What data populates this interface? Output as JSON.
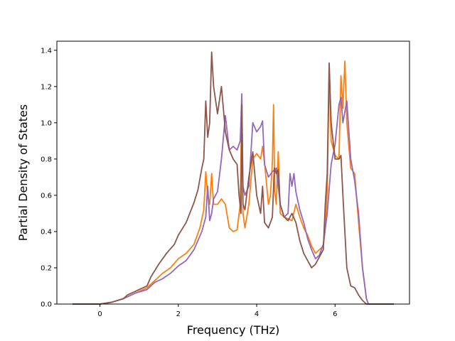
{
  "chart_data": {
    "type": "line",
    "title": "",
    "xlabel": "Frequency (THz)",
    "ylabel": "Partial Density of States",
    "xlim": [
      -1.1,
      7.9
    ],
    "ylim": [
      0.0,
      1.45
    ],
    "xticks": [
      0,
      2,
      4,
      6
    ],
    "xtick_labels": [
      "0",
      "2",
      "4",
      "6"
    ],
    "yticks": [
      0.0,
      0.2,
      0.4,
      0.6,
      0.8,
      1.0,
      1.2,
      1.4
    ],
    "ytick_labels": [
      "0.0",
      "0.2",
      "0.4",
      "0.6",
      "0.8",
      "1.0",
      "1.2",
      "1.4"
    ],
    "grid": false,
    "legend": "none",
    "series": [
      {
        "color": "#ff7f0e",
        "points": [
          [
            -0.7,
            0.0
          ],
          [
            0.0,
            0.0
          ],
          [
            0.3,
            0.01
          ],
          [
            0.6,
            0.03
          ],
          [
            0.9,
            0.06
          ],
          [
            1.2,
            0.09
          ],
          [
            1.4,
            0.13
          ],
          [
            1.6,
            0.17
          ],
          [
            1.8,
            0.2
          ],
          [
            2.0,
            0.25
          ],
          [
            2.2,
            0.28
          ],
          [
            2.4,
            0.33
          ],
          [
            2.55,
            0.42
          ],
          [
            2.65,
            0.52
          ],
          [
            2.7,
            0.73
          ],
          [
            2.75,
            0.6
          ],
          [
            2.8,
            0.55
          ],
          [
            2.85,
            0.72
          ],
          [
            2.9,
            0.55
          ],
          [
            3.0,
            0.55
          ],
          [
            3.1,
            0.58
          ],
          [
            3.2,
            0.55
          ],
          [
            3.3,
            0.42
          ],
          [
            3.4,
            0.4
          ],
          [
            3.5,
            0.41
          ],
          [
            3.58,
            0.55
          ],
          [
            3.62,
            1.13
          ],
          [
            3.65,
            0.5
          ],
          [
            3.7,
            0.42
          ],
          [
            3.8,
            0.55
          ],
          [
            3.9,
            0.8
          ],
          [
            4.0,
            0.83
          ],
          [
            4.1,
            0.8
          ],
          [
            4.15,
            0.87
          ],
          [
            4.2,
            0.78
          ],
          [
            4.3,
            0.55
          ],
          [
            4.35,
            0.6
          ],
          [
            4.4,
            0.78
          ],
          [
            4.43,
            1.1
          ],
          [
            4.46,
            0.62
          ],
          [
            4.5,
            0.55
          ],
          [
            4.55,
            0.84
          ],
          [
            4.6,
            0.5
          ],
          [
            4.7,
            0.48
          ],
          [
            4.8,
            0.47
          ],
          [
            4.9,
            0.46
          ],
          [
            5.0,
            0.55
          ],
          [
            5.1,
            0.48
          ],
          [
            5.2,
            0.42
          ],
          [
            5.3,
            0.38
          ],
          [
            5.4,
            0.32
          ],
          [
            5.5,
            0.28
          ],
          [
            5.6,
            0.3
          ],
          [
            5.7,
            0.32
          ],
          [
            5.75,
            0.42
          ],
          [
            5.8,
            0.62
          ],
          [
            5.85,
            1.28
          ],
          [
            5.9,
            0.9
          ],
          [
            6.0,
            0.82
          ],
          [
            6.1,
            0.8
          ],
          [
            6.15,
            1.26
          ],
          [
            6.2,
            1.08
          ],
          [
            6.25,
            1.34
          ],
          [
            6.3,
            1.0
          ],
          [
            6.4,
            0.75
          ],
          [
            6.5,
            0.72
          ],
          [
            6.6,
            0.45
          ],
          [
            6.7,
            0.2
          ],
          [
            6.8,
            0.03
          ],
          [
            6.85,
            0.0
          ],
          [
            7.5,
            0.0
          ]
        ]
      },
      {
        "color": "#9467bd",
        "points": [
          [
            -0.7,
            0.0
          ],
          [
            0.0,
            0.0
          ],
          [
            0.3,
            0.01
          ],
          [
            0.6,
            0.03
          ],
          [
            0.9,
            0.06
          ],
          [
            1.2,
            0.08
          ],
          [
            1.4,
            0.12
          ],
          [
            1.6,
            0.14
          ],
          [
            1.8,
            0.17
          ],
          [
            2.0,
            0.21
          ],
          [
            2.2,
            0.24
          ],
          [
            2.4,
            0.3
          ],
          [
            2.6,
            0.4
          ],
          [
            2.7,
            0.48
          ],
          [
            2.75,
            0.65
          ],
          [
            2.8,
            0.46
          ],
          [
            2.85,
            0.5
          ],
          [
            2.9,
            0.58
          ],
          [
            3.0,
            0.62
          ],
          [
            3.1,
            0.8
          ],
          [
            3.2,
            1.04
          ],
          [
            3.3,
            0.85
          ],
          [
            3.4,
            0.87
          ],
          [
            3.5,
            0.85
          ],
          [
            3.58,
            0.9
          ],
          [
            3.62,
            1.16
          ],
          [
            3.65,
            0.65
          ],
          [
            3.7,
            0.6
          ],
          [
            3.8,
            0.65
          ],
          [
            3.9,
            1.0
          ],
          [
            4.0,
            0.95
          ],
          [
            4.1,
            0.98
          ],
          [
            4.15,
            1.01
          ],
          [
            4.2,
            0.77
          ],
          [
            4.3,
            0.7
          ],
          [
            4.4,
            0.73
          ],
          [
            4.5,
            0.75
          ],
          [
            4.6,
            0.55
          ],
          [
            4.7,
            0.48
          ],
          [
            4.8,
            0.5
          ],
          [
            4.85,
            0.72
          ],
          [
            4.9,
            0.65
          ],
          [
            4.95,
            0.72
          ],
          [
            5.0,
            0.62
          ],
          [
            5.1,
            0.52
          ],
          [
            5.2,
            0.45
          ],
          [
            5.3,
            0.36
          ],
          [
            5.4,
            0.3
          ],
          [
            5.5,
            0.25
          ],
          [
            5.6,
            0.27
          ],
          [
            5.7,
            0.33
          ],
          [
            5.8,
            0.5
          ],
          [
            5.9,
            0.77
          ],
          [
            6.0,
            0.88
          ],
          [
            6.1,
            1.1
          ],
          [
            6.15,
            1.14
          ],
          [
            6.2,
            1.0
          ],
          [
            6.3,
            1.12
          ],
          [
            6.4,
            0.8
          ],
          [
            6.5,
            0.68
          ],
          [
            6.6,
            0.5
          ],
          [
            6.7,
            0.2
          ],
          [
            6.8,
            0.03
          ],
          [
            6.85,
            0.0
          ],
          [
            7.5,
            0.0
          ]
        ]
      },
      {
        "color": "#8c564b",
        "points": [
          [
            -0.7,
            0.0
          ],
          [
            0.0,
            0.0
          ],
          [
            0.3,
            0.01
          ],
          [
            0.6,
            0.03
          ],
          [
            0.7,
            0.05
          ],
          [
            0.9,
            0.07
          ],
          [
            1.2,
            0.1
          ],
          [
            1.3,
            0.15
          ],
          [
            1.5,
            0.22
          ],
          [
            1.7,
            0.28
          ],
          [
            1.9,
            0.33
          ],
          [
            2.0,
            0.38
          ],
          [
            2.2,
            0.45
          ],
          [
            2.4,
            0.56
          ],
          [
            2.5,
            0.63
          ],
          [
            2.6,
            0.75
          ],
          [
            2.65,
            0.8
          ],
          [
            2.7,
            1.12
          ],
          [
            2.75,
            0.92
          ],
          [
            2.8,
            1.0
          ],
          [
            2.85,
            1.39
          ],
          [
            2.9,
            1.2
          ],
          [
            3.0,
            1.05
          ],
          [
            3.1,
            1.2
          ],
          [
            3.2,
            0.95
          ],
          [
            3.3,
            0.85
          ],
          [
            3.4,
            0.8
          ],
          [
            3.5,
            0.77
          ],
          [
            3.55,
            0.6
          ],
          [
            3.6,
            0.5
          ],
          [
            3.62,
            1.1
          ],
          [
            3.65,
            0.55
          ],
          [
            3.7,
            0.52
          ],
          [
            3.8,
            0.7
          ],
          [
            3.9,
            0.84
          ],
          [
            4.0,
            0.6
          ],
          [
            4.1,
            0.5
          ],
          [
            4.15,
            0.65
          ],
          [
            4.2,
            0.45
          ],
          [
            4.3,
            0.42
          ],
          [
            4.4,
            0.48
          ],
          [
            4.45,
            0.75
          ],
          [
            4.5,
            0.72
          ],
          [
            4.55,
            0.74
          ],
          [
            4.6,
            0.55
          ],
          [
            4.7,
            0.48
          ],
          [
            4.8,
            0.46
          ],
          [
            4.9,
            0.5
          ],
          [
            5.0,
            0.45
          ],
          [
            5.1,
            0.35
          ],
          [
            5.2,
            0.28
          ],
          [
            5.3,
            0.24
          ],
          [
            5.4,
            0.2
          ],
          [
            5.5,
            0.22
          ],
          [
            5.6,
            0.26
          ],
          [
            5.7,
            0.3
          ],
          [
            5.75,
            0.55
          ],
          [
            5.8,
            0.72
          ],
          [
            5.85,
            1.33
          ],
          [
            5.9,
            1.0
          ],
          [
            6.0,
            0.8
          ],
          [
            6.1,
            0.8
          ],
          [
            6.15,
            0.82
          ],
          [
            6.2,
            0.6
          ],
          [
            6.3,
            0.2
          ],
          [
            6.4,
            0.1
          ],
          [
            6.5,
            0.09
          ],
          [
            6.6,
            0.05
          ],
          [
            6.7,
            0.02
          ],
          [
            6.8,
            0.0
          ],
          [
            7.5,
            0.0
          ]
        ]
      }
    ]
  }
}
